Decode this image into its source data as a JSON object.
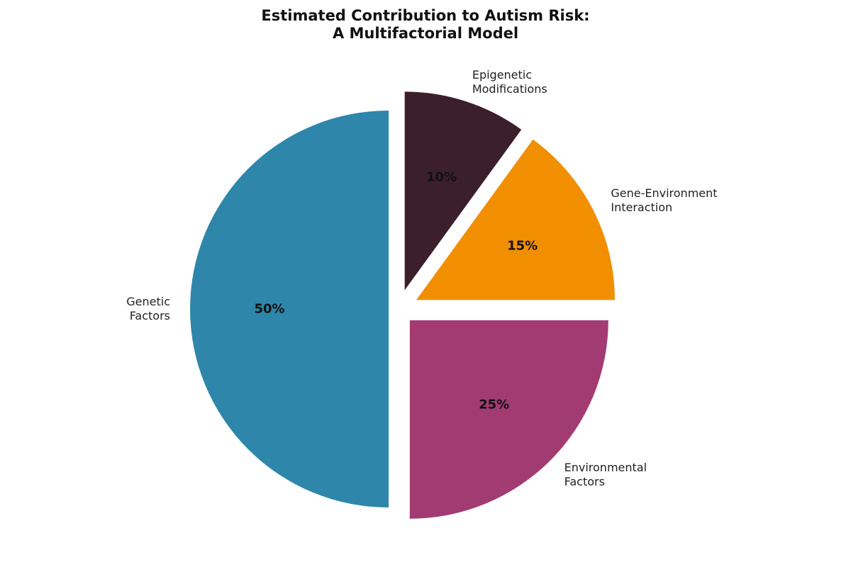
{
  "chart_data": {
    "type": "pie",
    "title": "Estimated Contribution to Autism Risk:\nA Multifactorial Model",
    "categories": [
      "Genetic\nFactors",
      "Environmental\nFactors",
      "Gene-Environment\nInteraction",
      "Epigenetic\nModifications"
    ],
    "values": [
      50,
      25,
      15,
      10
    ],
    "value_labels": [
      "50%",
      "25%",
      "15%",
      "10%"
    ],
    "colors": [
      "#2e86ab",
      "#a23b72",
      "#f18f01",
      "#3b1f2b"
    ]
  }
}
